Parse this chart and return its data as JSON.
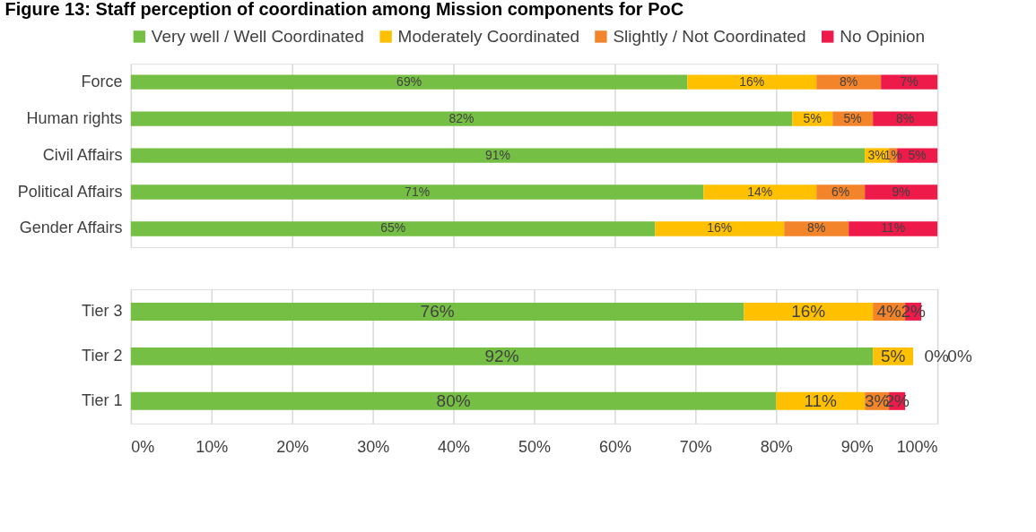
{
  "chart_data": [
    {
      "type": "bar",
      "orientation": "horizontal",
      "stacked": true,
      "title": "Figure 13: Staff perception of coordination among Mission components for PoC",
      "categories": [
        "Force",
        "Human rights",
        "Civil Affairs",
        "Political Affairs",
        "Gender Affairs"
      ],
      "series": [
        {
          "name": "Very well / Well Coordinated",
          "color": "#76bf45",
          "values": [
            69,
            82,
            91,
            71,
            65
          ],
          "value_labels": [
            "69%",
            "82%",
            "91%",
            "71%",
            "65%"
          ]
        },
        {
          "name": "Moderately Coordinated",
          "color": "#ffc000",
          "values": [
            16,
            5,
            3,
            14,
            16
          ],
          "value_labels": [
            "16%",
            "5%",
            "3%",
            "14%",
            "16%"
          ]
        },
        {
          "name": "Slightly / Not Coordinated",
          "color": "#f4842a",
          "values": [
            8,
            5,
            1,
            6,
            8
          ],
          "value_labels": [
            "8%",
            "5%",
            "1%",
            "6%",
            "8%"
          ]
        },
        {
          "name": "No Opinion",
          "color": "#ee1a4a",
          "values": [
            7,
            8,
            5,
            9,
            11
          ],
          "value_labels": [
            "7%",
            "8%",
            "5%",
            "9%",
            "11%"
          ]
        }
      ],
      "xlim": [
        0,
        100
      ],
      "xticks": [
        {
          "value": 0,
          "label": null
        },
        {
          "value": 20,
          "label": null
        },
        {
          "value": 40,
          "label": null
        },
        {
          "value": 60,
          "label": null
        },
        {
          "value": 80,
          "label": null
        },
        {
          "value": 100,
          "label": null
        }
      ],
      "tick_labels": "y",
      "grid": "x",
      "legend": "top"
    },
    {
      "type": "bar",
      "orientation": "horizontal",
      "stacked": true,
      "categories": [
        "Tier 3",
        "Tier 2",
        "Tier 1"
      ],
      "series": [
        {
          "color": "#76bf45",
          "values": [
            76,
            92,
            80
          ],
          "value_labels": [
            "76%",
            "92%",
            "80%"
          ]
        },
        {
          "color": "#ffc000",
          "values": [
            16,
            5,
            11
          ],
          "value_labels": [
            "16%",
            "5%",
            "11%"
          ]
        },
        {
          "color": "#f4842a",
          "values": [
            4,
            0,
            3
          ],
          "value_labels": [
            "4%",
            "0%",
            "3%"
          ]
        },
        {
          "color": "#ee1a4a",
          "values": [
            2,
            0,
            2
          ],
          "value_labels": [
            "2%",
            "0%",
            "2%"
          ]
        }
      ],
      "xlim": [
        0,
        100
      ],
      "xticks": [
        {
          "value": 0,
          "label": "0%"
        },
        {
          "value": 10,
          "label": "10%"
        },
        {
          "value": 20,
          "label": "20%"
        },
        {
          "value": 30,
          "label": "30%"
        },
        {
          "value": 40,
          "label": "40%"
        },
        {
          "value": 50,
          "label": "50%"
        },
        {
          "value": 60,
          "label": "60%"
        },
        {
          "value": 70,
          "label": "70%"
        },
        {
          "value": 80,
          "label": "80%"
        },
        {
          "value": 90,
          "label": "90%"
        },
        {
          "value": 100,
          "label": "100%"
        }
      ],
      "grid": "x"
    }
  ]
}
